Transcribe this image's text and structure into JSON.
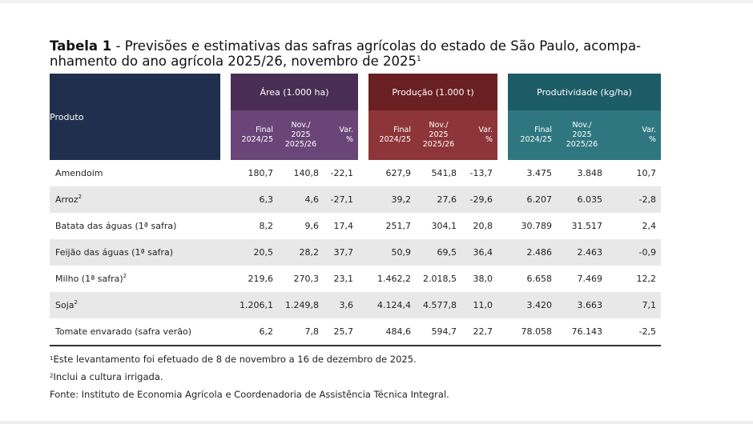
{
  "title": {
    "bold": "Tabela 1",
    "rest_line1": " - Previsões e estimativas das safras agrícolas do estado de São Paulo, acompa-",
    "line2": "nhamento do ano agrícola 2025/26, novembro de 2025",
    "sup": "1"
  },
  "header": {
    "produto": "Produto",
    "groups": [
      {
        "label": "Área (1.000 ha)",
        "color": "#4a2d55"
      },
      {
        "label": "Produção (1.000 t)",
        "color": "#6a1f22"
      },
      {
        "label": "Produtividade (kg/ha)",
        "color": "#1c5c66"
      }
    ],
    "sub": {
      "final_1": "Final",
      "final_2": "2024/25",
      "nov_1": "Nov./",
      "nov_2": "2025",
      "nov_3": "2025/26",
      "var_1": "Var.",
      "var_2": "%"
    }
  },
  "rows": [
    {
      "name": "Amendoim",
      "sup": "",
      "area": [
        "180,7",
        "140,8",
        "-22,1"
      ],
      "producao": [
        "627,9",
        "541,8",
        "-13,7"
      ],
      "produtividade": [
        "3.475",
        "3.848",
        "10,7"
      ]
    },
    {
      "name": "Arroz",
      "sup": "2",
      "area": [
        "6,3",
        "4,6",
        "-27,1"
      ],
      "producao": [
        "39,2",
        "27,6",
        "-29,6"
      ],
      "produtividade": [
        "6.207",
        "6.035",
        "-2,8"
      ]
    },
    {
      "name": "Batata das águas (1ª safra)",
      "sup": "",
      "area": [
        "8,2",
        "9,6",
        "17,4"
      ],
      "producao": [
        "251,7",
        "304,1",
        "20,8"
      ],
      "produtividade": [
        "30.789",
        "31.517",
        "2,4"
      ]
    },
    {
      "name": "Feijão das águas (1ª safra)",
      "sup": "",
      "area": [
        "20,5",
        "28,2",
        "37,7"
      ],
      "producao": [
        "50,9",
        "69,5",
        "36,4"
      ],
      "produtividade": [
        "2.486",
        "2.463",
        "-0,9"
      ]
    },
    {
      "name": "Milho (1ª safra)",
      "sup": "2",
      "area": [
        "219,6",
        "270,3",
        "23,1"
      ],
      "producao": [
        "1.462,2",
        "2.018,5",
        "38,0"
      ],
      "produtividade": [
        "6.658",
        "7.469",
        "12,2"
      ]
    },
    {
      "name": "Soja",
      "sup": "2",
      "area": [
        "1.206,1",
        "1.249,8",
        "3,6"
      ],
      "producao": [
        "4.124,4",
        "4.577,8",
        "11,0"
      ],
      "produtividade": [
        "3.420",
        "3.663",
        "7,1"
      ]
    },
    {
      "name": "Tomate envarado (safra verão)",
      "sup": "",
      "area": [
        "6,2",
        "7,8",
        "25,7"
      ],
      "producao": [
        "484,6",
        "594,7",
        "22,7"
      ],
      "produtividade": [
        "78.058",
        "76.143",
        "-2,5"
      ]
    }
  ],
  "notes": [
    {
      "sup": "1",
      "text": "Este levantamento foi efetuado de 8 de novembro a 16 de dezembro de 2025."
    },
    {
      "sup": "2",
      "text": "Inclui a cultura irrigada."
    },
    {
      "sup": "",
      "text": "Fonte: Instituto de Economia Agrícola e Coordenadoria de Assistência Técnica Integral."
    }
  ]
}
